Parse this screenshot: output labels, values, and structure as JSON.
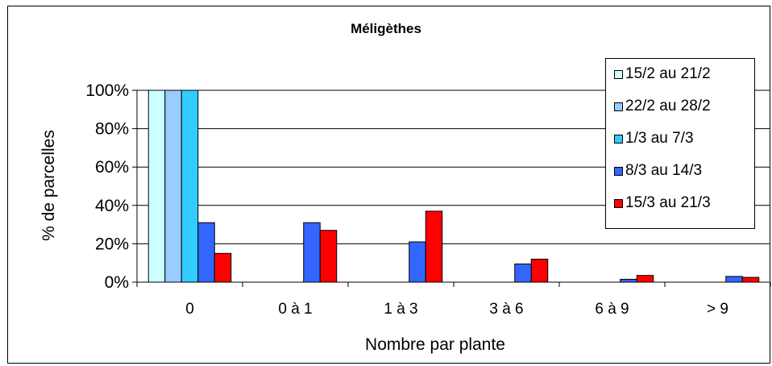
{
  "chart_data": {
    "type": "bar",
    "title": "Méligèthes",
    "xlabel": "Nombre par plante",
    "ylabel": "% de parcelles",
    "categories": [
      "0",
      "0 à 1",
      "1 à 3",
      "3 à 6",
      "6 à 9",
      "> 9"
    ],
    "ylim": [
      0,
      100
    ],
    "yticks": [
      "0%",
      "20%",
      "40%",
      "60%",
      "80%",
      "100%"
    ],
    "grid": true,
    "legend_position": "top-right",
    "series": [
      {
        "name": "15/2 au 21/2",
        "color": "#ccffff",
        "values": [
          100,
          0,
          0,
          0,
          0,
          0
        ]
      },
      {
        "name": "22/2 au 28/2",
        "color": "#99ccff",
        "values": [
          100,
          0,
          0,
          0,
          0,
          0
        ]
      },
      {
        "name": "1/3 au 7/3",
        "color": "#33ccff",
        "values": [
          100,
          0,
          0,
          0,
          0,
          0
        ]
      },
      {
        "name": "8/3 au 14/3",
        "color": "#3366ff",
        "values": [
          31,
          31,
          21,
          9.5,
          1.5,
          3
        ]
      },
      {
        "name": "15/3 au 21/3",
        "color": "#ff0000",
        "values": [
          15,
          27,
          37,
          12,
          3.5,
          2.5
        ]
      }
    ]
  }
}
